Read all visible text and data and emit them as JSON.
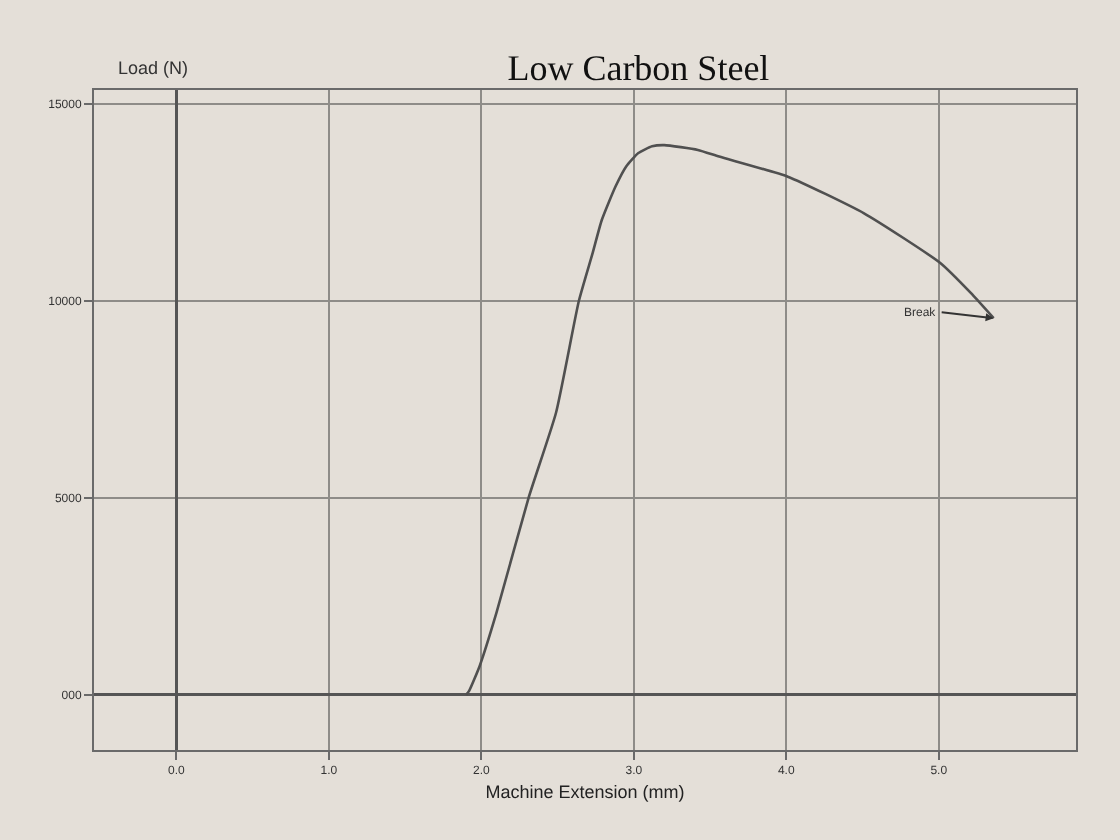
{
  "chart_data": {
    "type": "line",
    "title": "Low Carbon Steel",
    "xlabel": "Machine Extension (mm)",
    "ylabel": "Load (N)",
    "x": [
      1.9,
      1.92,
      1.99,
      2.1,
      2.31,
      2.49,
      2.64,
      2.73,
      2.79,
      2.88,
      2.95,
      3.03,
      3.12,
      3.2,
      3.42,
      3.56,
      4.01,
      4.51,
      5.01,
      5.21,
      5.36
    ],
    "values": [
      0,
      100,
      740,
      2090,
      5000,
      7160,
      10000,
      11210,
      12050,
      12900,
      13410,
      13750,
      13920,
      13950,
      13830,
      13660,
      13150,
      12220,
      10960,
      10200,
      9560
    ],
    "color": "#505050",
    "xlim": [
      -0.54,
      5.9
    ],
    "ylim": [
      -1400,
      15350
    ],
    "xticks": [
      {
        "value": 0,
        "label": "0.0"
      },
      {
        "value": 1,
        "label": "1.0"
      },
      {
        "value": 2,
        "label": "2.0"
      },
      {
        "value": 3,
        "label": "3.0"
      },
      {
        "value": 4,
        "label": "4.0"
      },
      {
        "value": 5,
        "label": "5.0"
      }
    ],
    "yticks": [
      {
        "value": 0,
        "label": "000"
      },
      5000,
      10000,
      15000
    ],
    "grid": true,
    "annotations": [
      {
        "text": "Break",
        "x": 5.36,
        "y": 9560
      }
    ]
  }
}
